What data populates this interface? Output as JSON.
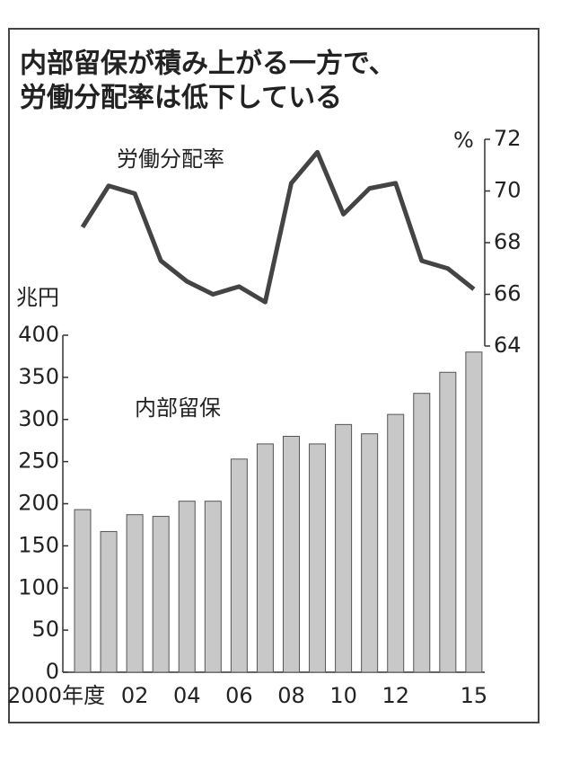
{
  "chart_data": {
    "type": "combo",
    "title": [
      "内部留保が積み上がる一方で、",
      "労働分配率は低下している"
    ],
    "y_unit": "兆円",
    "y2_unit": "%",
    "categories": [
      "2000年度",
      null,
      "02",
      null,
      "04",
      null,
      "06",
      null,
      "08",
      null,
      "10",
      null,
      "12",
      null,
      null,
      "15"
    ],
    "series": [
      {
        "name": "内部留保",
        "type": "bar",
        "color": "#c8c8c8",
        "values": [
          193,
          167,
          187,
          185,
          203,
          203,
          253,
          271,
          280,
          271,
          294,
          283,
          306,
          331,
          356,
          380
        ]
      },
      {
        "name": "労働分配率",
        "type": "line",
        "axis": "y2",
        "color": "#444444",
        "values": [
          68.6,
          70.2,
          69.9,
          67.3,
          66.5,
          66.0,
          66.3,
          65.7,
          70.3,
          71.5,
          69.1,
          70.1,
          70.3,
          67.3,
          67.0,
          66.2
        ]
      }
    ],
    "ylim": [
      0,
      400
    ],
    "yticks": [
      0,
      50,
      100,
      150,
      200,
      250,
      300,
      350,
      400
    ],
    "y2lim": [
      64,
      72
    ],
    "y2ticks": [
      64,
      66,
      68,
      70,
      72
    ]
  }
}
